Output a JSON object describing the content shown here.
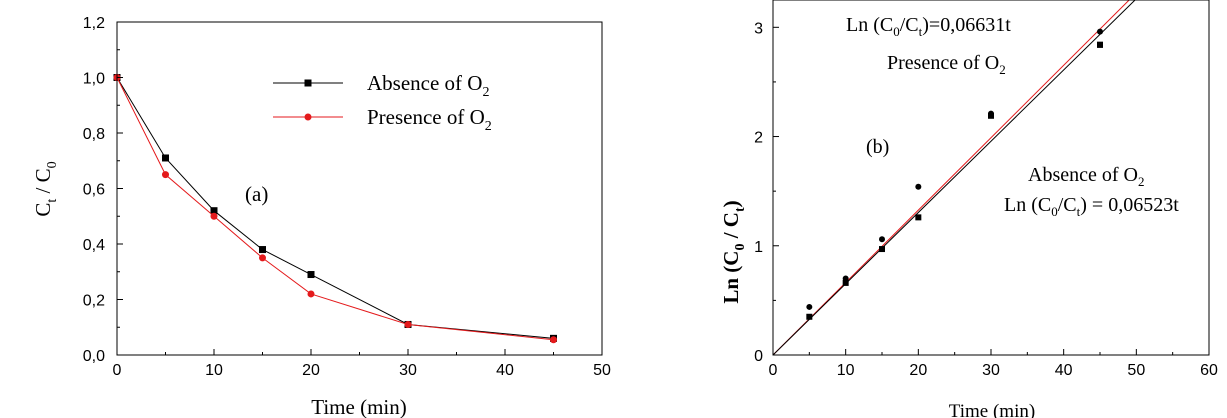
{
  "chart_data": [
    {
      "type": "line",
      "panel": "(a)",
      "xlabel": "Time (min)",
      "ylabel": {
        "main": "C",
        "sub1": "t",
        "mid": " / C",
        "sub2": "0"
      },
      "xlim": [
        0,
        50
      ],
      "ylim": [
        0.0,
        1.2
      ],
      "xticks": [
        "0",
        "10",
        "20",
        "30",
        "40",
        "50"
      ],
      "yticks": [
        "0,0",
        "0,2",
        "0,4",
        "0,6",
        "0,8",
        "1,0",
        "1,2"
      ],
      "grid": false,
      "legend_placement": "top-right",
      "series": [
        {
          "name": "Absence of O",
          "name_sub": "2",
          "color": "#000000",
          "marker": "square",
          "x": [
            0,
            5,
            10,
            15,
            20,
            30,
            45
          ],
          "y": [
            1.0,
            0.71,
            0.52,
            0.38,
            0.29,
            0.11,
            0.06
          ]
        },
        {
          "name": "Presence of O",
          "name_sub": "2",
          "color": "#e41a1c",
          "marker": "circle",
          "x": [
            0,
            5,
            10,
            15,
            20,
            30,
            45
          ],
          "y": [
            1.0,
            0.65,
            0.5,
            0.35,
            0.22,
            0.11,
            0.055
          ]
        }
      ]
    },
    {
      "type": "scatter",
      "panel": "(b)",
      "xlabel": "Time (min)",
      "ylabel": {
        "main": "Ln (C",
        "sub1": "0",
        "mid": " / C",
        "sub2": "t",
        "end": ")"
      },
      "xlim": [
        0,
        60
      ],
      "ylim": [
        0,
        3.25
      ],
      "xticks": [
        "0",
        "10",
        "20",
        "30",
        "40",
        "50",
        "60"
      ],
      "yticks": [
        "0",
        "1",
        "2",
        "3"
      ],
      "grid": false,
      "series": [
        {
          "name": "Absence of O",
          "name_sub": "2",
          "marker": "square",
          "color": "#000000",
          "x": [
            5,
            10,
            15,
            20,
            30,
            45,
            45
          ],
          "y": [
            0.35,
            0.66,
            0.97,
            1.26,
            2.19,
            2.84,
            2.84
          ]
        },
        {
          "name": "Presence of O",
          "name_sub": "2",
          "marker": "circle",
          "color": "#000000",
          "x": [
            5,
            10,
            15,
            20,
            30,
            45
          ],
          "y": [
            0.44,
            0.7,
            1.06,
            1.54,
            2.21,
            2.96
          ]
        }
      ],
      "fits": [
        {
          "slope": 0.06631,
          "color": "#e41a1c",
          "label": {
            "pre": "Ln (C",
            "sub1": "0",
            "mid": "/C",
            "sub2": "t",
            "post": ")=0,06631t"
          },
          "caption": {
            "pre": "Presence of O",
            "sub": "2"
          }
        },
        {
          "slope": 0.06523,
          "color": "#000000",
          "label": {
            "pre": "Ln (C",
            "sub1": "0",
            "mid": "/C",
            "sub2": "t",
            "post": ") = 0,06523t"
          },
          "caption": {
            "pre": "Absence of O",
            "sub": "2"
          }
        }
      ]
    }
  ]
}
